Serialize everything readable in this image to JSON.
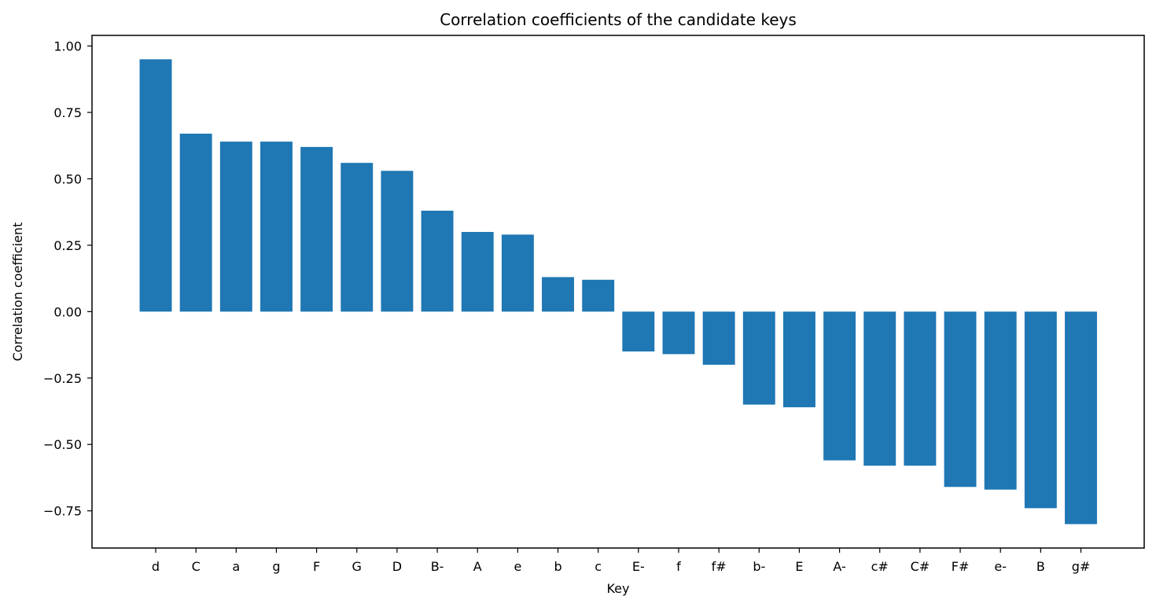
{
  "chart_data": {
    "type": "bar",
    "title": "Correlation coefficients of the candidate keys",
    "xlabel": "Key",
    "ylabel": "Correlation coefficient",
    "categories": [
      "d",
      "C",
      "a",
      "g",
      "F",
      "G",
      "D",
      "B-",
      "A",
      "e",
      "b",
      "c",
      "E-",
      "f",
      "f#",
      "b-",
      "E",
      "A-",
      "c#",
      "C#",
      "F#",
      "e-",
      "B",
      "g#"
    ],
    "values": [
      0.95,
      0.67,
      0.64,
      0.64,
      0.62,
      0.56,
      0.53,
      0.38,
      0.3,
      0.29,
      0.13,
      0.12,
      -0.15,
      -0.16,
      -0.2,
      -0.35,
      -0.36,
      -0.56,
      -0.58,
      -0.58,
      -0.66,
      -0.67,
      -0.74,
      -0.8
    ],
    "ylim": [
      -0.89,
      1.04
    ],
    "yticks": [
      -0.75,
      -0.5,
      -0.25,
      0.0,
      0.25,
      0.5,
      0.75,
      1.0
    ],
    "ytick_labels": [
      "−0.75",
      "−0.50",
      "−0.25",
      "0.00",
      "0.25",
      "0.50",
      "0.75",
      "1.00"
    ],
    "bar_color": "#1f77b4",
    "grid": false,
    "legend": "none"
  }
}
